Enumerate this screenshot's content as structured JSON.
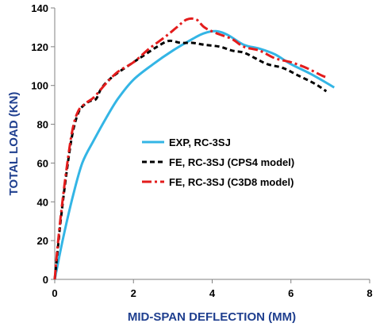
{
  "chart_data": {
    "type": "line",
    "xlabel": "MID-SPAN DEFLECTION (MM)",
    "ylabel": "TOTAL LOAD (KN)",
    "xlim": [
      0,
      8
    ],
    "ylim": [
      0,
      140
    ],
    "xticks": [
      0,
      2,
      4,
      6,
      8
    ],
    "yticks": [
      0,
      20,
      40,
      60,
      80,
      100,
      120,
      140
    ],
    "grid": false,
    "legend_position": "center-right",
    "series": [
      {
        "name": "EXP, RC-3SJ",
        "color": "#33b5e5",
        "style": "solid",
        "points": [
          [
            0,
            0
          ],
          [
            0.2,
            20
          ],
          [
            0.45,
            42
          ],
          [
            0.7,
            60
          ],
          [
            1.0,
            72
          ],
          [
            1.3,
            83
          ],
          [
            1.6,
            93
          ],
          [
            2.0,
            103
          ],
          [
            2.5,
            111
          ],
          [
            3.0,
            118
          ],
          [
            3.5,
            124
          ],
          [
            3.8,
            127
          ],
          [
            4.1,
            128
          ],
          [
            4.4,
            126
          ],
          [
            4.8,
            121
          ],
          [
            5.2,
            119
          ],
          [
            5.6,
            116
          ],
          [
            6.0,
            111
          ],
          [
            6.5,
            106
          ],
          [
            7.1,
            99
          ]
        ]
      },
      {
        "name": "FE, RC-3SJ (CPS4 model)",
        "color": "#000000",
        "style": "dashed",
        "points": [
          [
            0,
            0
          ],
          [
            0.05,
            10
          ],
          [
            0.15,
            30
          ],
          [
            0.3,
            55
          ],
          [
            0.45,
            75
          ],
          [
            0.6,
            86
          ],
          [
            0.75,
            90
          ],
          [
            0.9,
            92
          ],
          [
            1.05,
            93
          ],
          [
            1.2,
            99
          ],
          [
            1.5,
            105
          ],
          [
            2.0,
            112
          ],
          [
            2.3,
            116
          ],
          [
            2.6,
            120
          ],
          [
            2.9,
            123
          ],
          [
            3.2,
            122
          ],
          [
            3.5,
            122
          ],
          [
            3.8,
            121
          ],
          [
            4.2,
            120
          ],
          [
            4.5,
            118
          ],
          [
            4.8,
            117
          ],
          [
            5.1,
            114
          ],
          [
            5.4,
            111
          ],
          [
            5.8,
            109
          ],
          [
            6.2,
            105
          ],
          [
            6.6,
            101
          ],
          [
            6.9,
            97
          ]
        ]
      },
      {
        "name": "FE, RC-3SJ (C3D8 model)",
        "color": "#e31c1c",
        "style": "dashdot",
        "points": [
          [
            0,
            0
          ],
          [
            0.05,
            12
          ],
          [
            0.15,
            32
          ],
          [
            0.3,
            57
          ],
          [
            0.45,
            77
          ],
          [
            0.6,
            87
          ],
          [
            0.8,
            91
          ],
          [
            1.0,
            94
          ],
          [
            1.3,
            101
          ],
          [
            1.6,
            107
          ],
          [
            2.0,
            112
          ],
          [
            2.4,
            119
          ],
          [
            2.8,
            125
          ],
          [
            3.1,
            130
          ],
          [
            3.35,
            134
          ],
          [
            3.6,
            134
          ],
          [
            3.8,
            130
          ],
          [
            4.1,
            127
          ],
          [
            4.5,
            124
          ],
          [
            4.8,
            120
          ],
          [
            5.2,
            118
          ],
          [
            5.6,
            114
          ],
          [
            6.0,
            112
          ],
          [
            6.4,
            109
          ],
          [
            6.8,
            105
          ],
          [
            6.95,
            104
          ]
        ]
      }
    ]
  },
  "legend": {
    "entries": [
      "EXP, RC-3SJ",
      "FE, RC-3SJ (CPS4 model)",
      "FE, RC-3SJ (C3D8 model)"
    ]
  }
}
